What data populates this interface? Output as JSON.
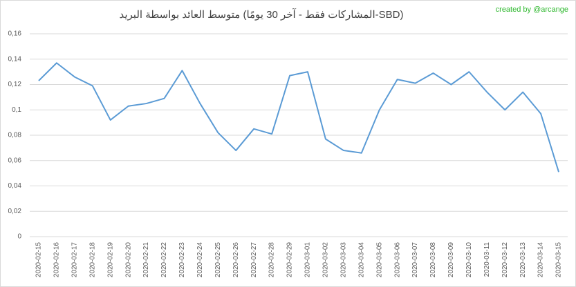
{
  "chart_data": {
    "type": "line",
    "title": "متوسط العائد بواسطة البريد (المشاركات فقط - آخر 30 يومًا-SBD)",
    "annotation": "created by @arcange",
    "categories": [
      "2020-02-15",
      "2020-02-16",
      "2020-02-17",
      "2020-02-18",
      "2020-02-19",
      "2020-02-20",
      "2020-02-21",
      "2020-02-22",
      "2020-02-23",
      "2020-02-24",
      "2020-02-25",
      "2020-02-26",
      "2020-02-27",
      "2020-02-28",
      "2020-02-29",
      "2020-03-01",
      "2020-03-02",
      "2020-03-03",
      "2020-03-04",
      "2020-03-05",
      "2020-03-06",
      "2020-03-07",
      "2020-03-08",
      "2020-03-09",
      "2020-03-10",
      "2020-03-11",
      "2020-03-12",
      "2020-03-13",
      "2020-03-14",
      "2020-03-15"
    ],
    "values": [
      0.123,
      0.137,
      0.126,
      0.119,
      0.092,
      0.103,
      0.105,
      0.109,
      0.131,
      0.105,
      0.082,
      0.068,
      0.085,
      0.081,
      0.127,
      0.13,
      0.077,
      0.068,
      0.066,
      0.1,
      0.124,
      0.121,
      0.129,
      0.12,
      0.13,
      0.114,
      0.1,
      0.114,
      0.097,
      0.051
    ],
    "color": "#5b9bd5",
    "ylim": [
      0,
      0.16
    ],
    "yticks": [
      0,
      {
        "value": 0.02,
        "label": "0,02"
      },
      {
        "value": 0.04,
        "label": "0,04"
      },
      {
        "value": 0.06,
        "label": "0,06"
      },
      {
        "value": 0.08,
        "label": "0,08"
      },
      {
        "value": 0.1,
        "label": "0,1"
      },
      {
        "value": 0.12,
        "label": "0,12"
      },
      {
        "value": 0.14,
        "label": "0,14"
      },
      {
        "value": 0.16,
        "label": "0,16"
      }
    ],
    "grid": true
  }
}
